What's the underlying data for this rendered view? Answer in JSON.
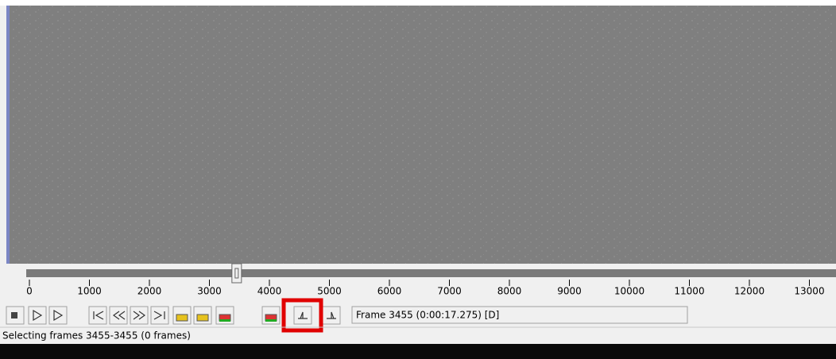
{
  "timeline": {
    "ticks": [
      0,
      1000,
      2000,
      3000,
      4000,
      5000,
      6000,
      7000,
      8000,
      9000,
      10000,
      11000,
      12000,
      13000
    ],
    "position": 3455
  },
  "frame_display": "Frame 3455 (0:00:17.275) [D]",
  "status_bar": "Selecting frames 3455-3455 (0 frames)"
}
